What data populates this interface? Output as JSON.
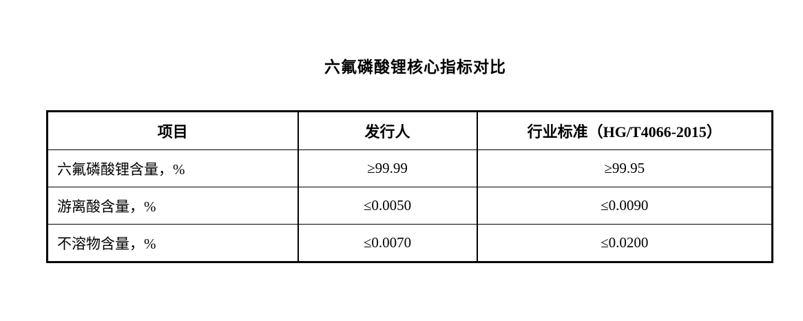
{
  "page": {
    "title": "六氟磷酸锂核心指标对比"
  },
  "table": {
    "headers": [
      "项目",
      "发行人",
      "行业标准（HG/T4066-2015）"
    ],
    "rows": [
      [
        "六氟磷酸锂含量，%",
        "≥99.99",
        "≥99.95"
      ],
      [
        "游离酸含量，%",
        "≤0.0050",
        "≤0.0090"
      ],
      [
        "不溶物含量，%",
        "≤0.0070",
        "≤0.0200"
      ]
    ]
  },
  "colors": {
    "text": "#000000",
    "background": "#ffffff",
    "border": "#000000"
  }
}
